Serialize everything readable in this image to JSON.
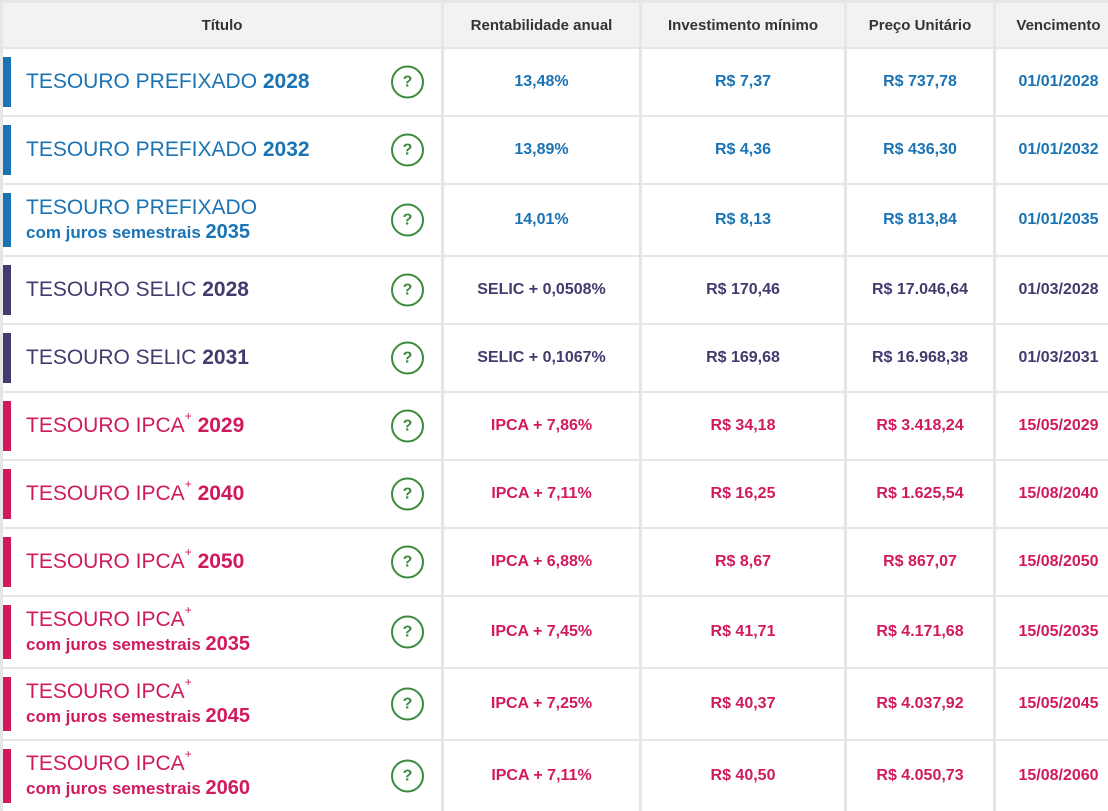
{
  "colors": {
    "prefixado": "#1a73b4",
    "selic": "#433a6e",
    "ipca": "#d11a5e",
    "help_icon": "#3c8a3c"
  },
  "header": {
    "titulo": "Título",
    "rentabilidade": "Rentabilidade anual",
    "investimento": "Investimento mínimo",
    "preco": "Preço Unitário",
    "vencimento": "Vencimento"
  },
  "rows": [
    {
      "family": "prefixado",
      "name": "TESOURO PREFIXADO",
      "sup": "",
      "sub": "",
      "year": "2028",
      "rent": "13,48%",
      "inv": "R$ 7,37",
      "preco": "R$ 737,78",
      "venc": "01/01/2028"
    },
    {
      "family": "prefixado",
      "name": "TESOURO PREFIXADO",
      "sup": "",
      "sub": "",
      "year": "2032",
      "rent": "13,89%",
      "inv": "R$ 4,36",
      "preco": "R$ 436,30",
      "venc": "01/01/2032"
    },
    {
      "family": "prefixado",
      "name": "TESOURO PREFIXADO",
      "sup": "",
      "sub": "com juros semestrais",
      "year": "2035",
      "rent": "14,01%",
      "inv": "R$ 8,13",
      "preco": "R$ 813,84",
      "venc": "01/01/2035"
    },
    {
      "family": "selic",
      "name": "TESOURO SELIC",
      "sup": "",
      "sub": "",
      "year": "2028",
      "rent": "SELIC + 0,0508%",
      "inv": "R$ 170,46",
      "preco": "R$ 17.046,64",
      "venc": "01/03/2028"
    },
    {
      "family": "selic",
      "name": "TESOURO SELIC",
      "sup": "",
      "sub": "",
      "year": "2031",
      "rent": "SELIC + 0,1067%",
      "inv": "R$ 169,68",
      "preco": "R$ 16.968,38",
      "venc": "01/03/2031"
    },
    {
      "family": "ipca",
      "name": "TESOURO IPCA",
      "sup": "+",
      "sub": "",
      "year": "2029",
      "rent": "IPCA + 7,86%",
      "inv": "R$ 34,18",
      "preco": "R$ 3.418,24",
      "venc": "15/05/2029"
    },
    {
      "family": "ipca",
      "name": "TESOURO IPCA",
      "sup": "+",
      "sub": "",
      "year": "2040",
      "rent": "IPCA + 7,11%",
      "inv": "R$ 16,25",
      "preco": "R$ 1.625,54",
      "venc": "15/08/2040"
    },
    {
      "family": "ipca",
      "name": "TESOURO IPCA",
      "sup": "+",
      "sub": "",
      "year": "2050",
      "rent": "IPCA + 6,88%",
      "inv": "R$ 8,67",
      "preco": "R$ 867,07",
      "venc": "15/08/2050"
    },
    {
      "family": "ipca",
      "name": "TESOURO IPCA",
      "sup": "+",
      "sub": "com juros semestrais",
      "year": "2035",
      "rent": "IPCA + 7,45%",
      "inv": "R$ 41,71",
      "preco": "R$ 4.171,68",
      "venc": "15/05/2035"
    },
    {
      "family": "ipca",
      "name": "TESOURO IPCA",
      "sup": "+",
      "sub": "com juros semestrais",
      "year": "2045",
      "rent": "IPCA + 7,25%",
      "inv": "R$ 40,37",
      "preco": "R$ 4.037,92",
      "venc": "15/05/2045"
    },
    {
      "family": "ipca",
      "name": "TESOURO IPCA",
      "sup": "+",
      "sub": "com juros semestrais",
      "year": "2060",
      "rent": "IPCA + 7,11%",
      "inv": "R$ 40,50",
      "preco": "R$ 4.050,73",
      "venc": "15/08/2060"
    }
  ],
  "help_glyph": "?"
}
